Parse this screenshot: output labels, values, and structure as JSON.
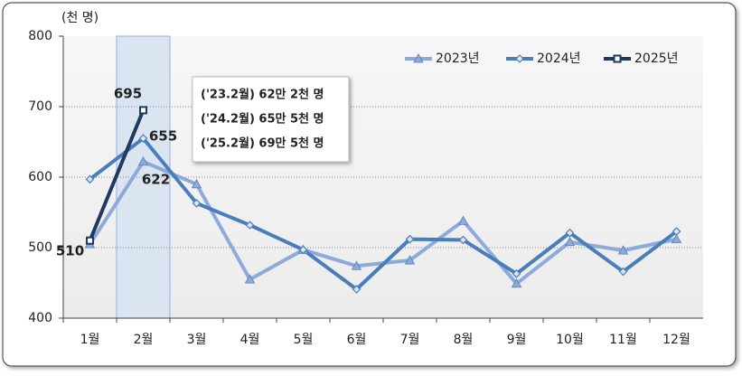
{
  "chart_data": {
    "type": "line",
    "y_unit": "(천 명)",
    "categories": [
      "1월",
      "2월",
      "3월",
      "4월",
      "5월",
      "6월",
      "7월",
      "8월",
      "9월",
      "10월",
      "11월",
      "12월"
    ],
    "series": [
      {
        "name": "2023년",
        "color": "#8eaadb",
        "marker": "triangle",
        "values": [
          505,
          622,
          590,
          455,
          497,
          474,
          482,
          538,
          449,
          508,
          496,
          512
        ]
      },
      {
        "name": "2024년",
        "color": "#4a7ebb",
        "marker": "diamond",
        "values": [
          597,
          655,
          563,
          532,
          497,
          441,
          512,
          511,
          463,
          521,
          466,
          523
        ]
      },
      {
        "name": "2025년",
        "color": "#1f3a60",
        "marker": "square",
        "values": [
          510,
          695,
          null,
          null,
          null,
          null,
          null,
          null,
          null,
          null,
          null,
          null
        ]
      }
    ],
    "ylim": [
      400,
      800
    ],
    "yticks": [
      400,
      500,
      600,
      700,
      800
    ],
    "grid": true,
    "legend": "top-right",
    "annotation": [
      "('23.2월) 62만 2천 명",
      "('24.2월) 65만 5천 명",
      "('25.2월) 69만 5천 명"
    ]
  }
}
